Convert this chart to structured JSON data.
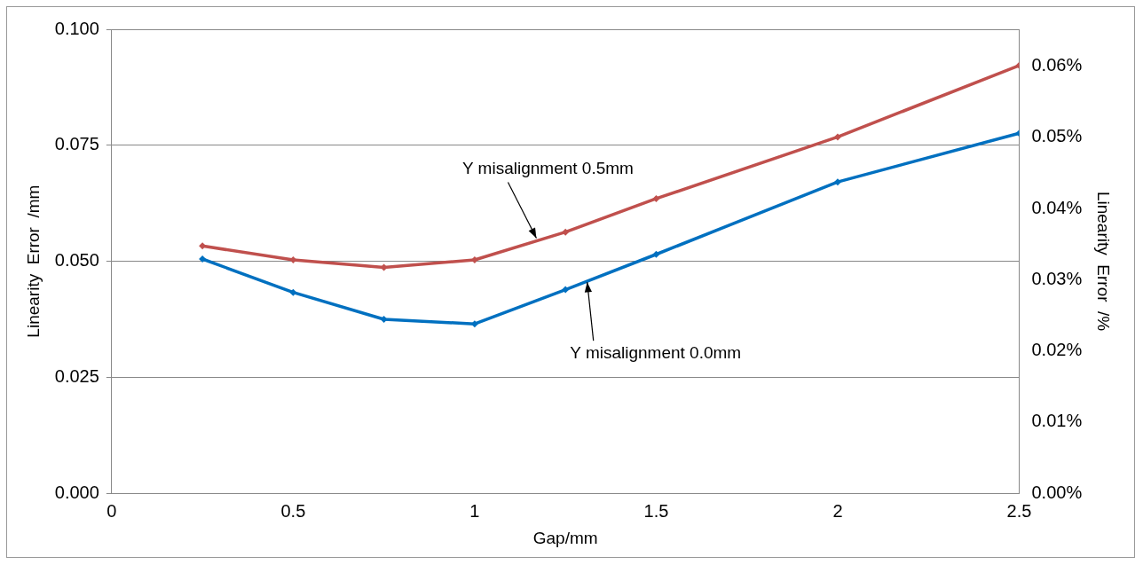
{
  "chart_data": {
    "type": "line",
    "xlabel": "Gap/mm",
    "ylabel": "Linearity  Error  /mm",
    "y2label": "Linearity  Error  /%",
    "xlim": [
      0,
      2.5
    ],
    "xticks": [
      0,
      0.5,
      1,
      1.5,
      2,
      2.5
    ],
    "ylim": [
      0,
      0.1
    ],
    "yticks": [
      {
        "value": 0,
        "label": "0.000"
      },
      {
        "value": 0.025,
        "label": "0.025"
      },
      {
        "value": 0.05,
        "label": "0.050"
      },
      {
        "value": 0.075,
        "label": "0.075"
      },
      {
        "value": 0.1,
        "label": "0.100"
      }
    ],
    "y2lim": [
      0,
      0.0652
    ],
    "y2ticks": [
      {
        "value": 0,
        "label": "0.00%"
      },
      {
        "value": 0.01,
        "label": "0.01%"
      },
      {
        "value": 0.02,
        "label": "0.02%"
      },
      {
        "value": 0.03,
        "label": "0.03%"
      },
      {
        "value": 0.04,
        "label": "0.04%"
      },
      {
        "value": 0.05,
        "label": "0.05%"
      },
      {
        "value": 0.06,
        "label": "0.06%"
      }
    ],
    "x": [
      0.25,
      0.5,
      0.75,
      1,
      1.25,
      1.5,
      2,
      2.5
    ],
    "series": [
      {
        "color": "#c0504d",
        "values": [
          0.0533,
          0.0503,
          0.0487,
          0.0503,
          0.0563,
          0.0635,
          0.0768,
          0.0922
        ]
      },
      {
        "color": "#0070c0",
        "values": [
          0.0505,
          0.0433,
          0.0375,
          0.0365,
          0.0439,
          0.0515,
          0.0671,
          0.0776
        ]
      }
    ],
    "annotations": [
      {
        "text": "Y misalignment 0.5mm",
        "x": 1.17,
        "y": 0.055
      },
      {
        "text": "Y misalignment 0.0mm",
        "x": 1.31,
        "y": 0.0455
      }
    ],
    "grid": "y",
    "legend": false,
    "marker": "diamond",
    "line_style": "solid"
  }
}
